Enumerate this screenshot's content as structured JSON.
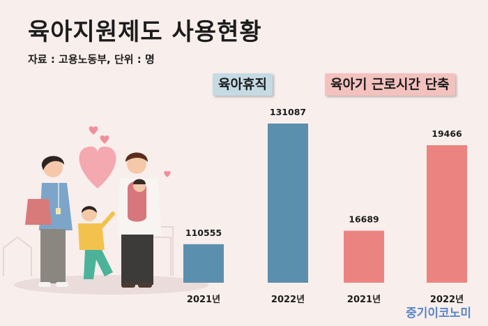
{
  "title": "육아지원제도 사용현황",
  "source": "자료 : 고용노동부, 단위 : 명",
  "groups": [
    "육아휴직",
    "육아기 근로시간 단축"
  ],
  "brand": "중기이코노미",
  "colors": {
    "parental_leave": "#5b8fae",
    "reduced_hours": "#eb8480",
    "background": "#f8eeec"
  },
  "chart_data": {
    "type": "bar",
    "title": "육아지원제도 사용현황",
    "categories": [
      "2021년",
      "2022년",
      "2021년",
      "2022년"
    ],
    "series": [
      {
        "name": "육아휴직",
        "values": [
          110555,
          131087,
          null,
          null
        ]
      },
      {
        "name": "육아기 근로시간 단축",
        "values": [
          null,
          null,
          16689,
          19466
        ]
      }
    ],
    "notes": "Two groups drawn with independent vertical scales; no y-axis shown."
  }
}
